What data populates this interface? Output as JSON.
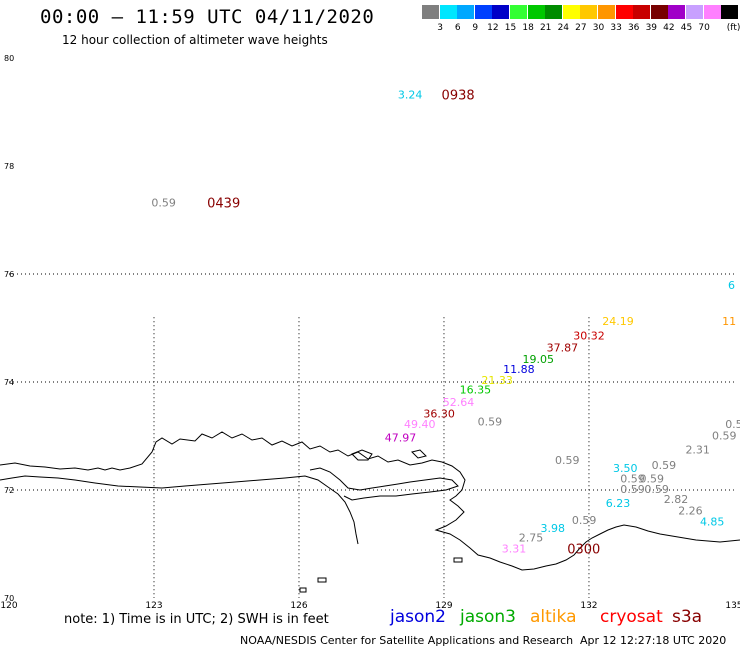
{
  "title": "00:00 – 11:59 UTC 04/11/2020",
  "subtitle": "12 hour collection of altimeter wave heights",
  "legend": {
    "unit": "(ft)",
    "items": [
      {
        "label": "",
        "color": "#7f7f7f"
      },
      {
        "label": "3",
        "color": "#00e6ff"
      },
      {
        "label": "6",
        "color": "#00a8ff"
      },
      {
        "label": "9",
        "color": "#0040ff"
      },
      {
        "label": "12",
        "color": "#0000c8"
      },
      {
        "label": "15",
        "color": "#33ff33"
      },
      {
        "label": "18",
        "color": "#00c800"
      },
      {
        "label": "21",
        "color": "#008c00"
      },
      {
        "label": "24",
        "color": "#ffff00"
      },
      {
        "label": "27",
        "color": "#ffc800"
      },
      {
        "label": "30",
        "color": "#ff9600"
      },
      {
        "label": "33",
        "color": "#ff0000"
      },
      {
        "label": "36",
        "color": "#c80000"
      },
      {
        "label": "39",
        "color": "#780000"
      },
      {
        "label": "42",
        "color": "#a000c8"
      },
      {
        "label": "45",
        "color": "#c8a0ff"
      },
      {
        "label": "70",
        "color": "#ff80ff"
      },
      {
        "label": "",
        "color": "#000000"
      }
    ]
  },
  "note": "note:  1) Time is in UTC;  2) SWH is in feet",
  "satellites": [
    {
      "name": "jason2",
      "color": "#0000dd"
    },
    {
      "name": "jason3",
      "color": "#00aa00"
    },
    {
      "name": "altika",
      "color": "#ff9900"
    },
    {
      "name": "cryosat",
      "color": "#ff0000"
    },
    {
      "name": "s3a",
      "color": "#880000"
    }
  ],
  "credit": "NOAA/NESDIS Center for Satellite Applications and Research",
  "timestamp": "Apr 12 12:27:18 UTC 2020",
  "chart_data": {
    "type": "scatter",
    "xlabel": "",
    "ylabel": "",
    "xlim": [
      120,
      135
    ],
    "ylim": [
      70,
      80
    ],
    "x_ticks": [
      "120",
      "123",
      "126",
      "129",
      "132",
      "135"
    ],
    "y_ticks": [
      "80",
      "78",
      "76",
      "74",
      "72",
      "70"
    ],
    "grid": true,
    "points": [
      {
        "lon": 128.3,
        "lat": 79.32,
        "label": "3.24",
        "color": "#00c8e6"
      },
      {
        "lon": 123.2,
        "lat": 77.32,
        "label": "0.59",
        "color": "#808080"
      },
      {
        "lon": 134.95,
        "lat": 75.8,
        "label": "6",
        "color": "#00c8e6"
      },
      {
        "lon": 132.6,
        "lat": 75.13,
        "label": "24.19",
        "color": "#ffc800"
      },
      {
        "lon": 134.9,
        "lat": 75.13,
        "label": "11",
        "color": "#ff9600"
      },
      {
        "lon": 132.0,
        "lat": 74.86,
        "label": "30.32",
        "color": "#c80000"
      },
      {
        "lon": 131.45,
        "lat": 74.64,
        "label": "37.87",
        "color": "#a00000"
      },
      {
        "lon": 130.95,
        "lat": 74.43,
        "label": "19.05",
        "color": "#00a000"
      },
      {
        "lon": 130.55,
        "lat": 74.24,
        "label": "11.88",
        "color": "#0000dd"
      },
      {
        "lon": 130.1,
        "lat": 74.04,
        "label": "21.33",
        "color": "#e6e600"
      },
      {
        "lon": 129.65,
        "lat": 73.86,
        "label": "16.35",
        "color": "#00c800"
      },
      {
        "lon": 129.3,
        "lat": 73.63,
        "label": "52.64",
        "color": "#ff80ff"
      },
      {
        "lon": 128.9,
        "lat": 73.42,
        "label": "36.30",
        "color": "#a00000"
      },
      {
        "lon": 128.5,
        "lat": 73.22,
        "label": "49.40",
        "color": "#ff80ff"
      },
      {
        "lon": 129.95,
        "lat": 73.27,
        "label": "0.59",
        "color": "#808080"
      },
      {
        "lon": 128.1,
        "lat": 72.97,
        "label": "47.97",
        "color": "#c000c0"
      },
      {
        "lon": 131.55,
        "lat": 72.56,
        "label": "0.59",
        "color": "#808080"
      },
      {
        "lon": 132.75,
        "lat": 72.41,
        "label": "3.50",
        "color": "#00c8e6"
      },
      {
        "lon": 133.55,
        "lat": 72.46,
        "label": "0.59",
        "color": "#808080"
      },
      {
        "lon": 134.25,
        "lat": 72.75,
        "label": "2.31",
        "color": "#808080"
      },
      {
        "lon": 134.8,
        "lat": 73.01,
        "label": "0.59",
        "color": "#808080"
      },
      {
        "lon": 135.0,
        "lat": 73.22,
        "label": "0.5",
        "color": "#808080"
      },
      {
        "lon": 132.9,
        "lat": 72.21,
        "label": "0.59",
        "color": "#808080"
      },
      {
        "lon": 133.3,
        "lat": 72.21,
        "label": "0.59",
        "color": "#808080"
      },
      {
        "lon": 132.9,
        "lat": 72.02,
        "label": "0.59",
        "color": "#808080"
      },
      {
        "lon": 133.4,
        "lat": 72.02,
        "label": "0.59",
        "color": "#808080"
      },
      {
        "lon": 133.8,
        "lat": 71.83,
        "label": "2.82",
        "color": "#808080"
      },
      {
        "lon": 134.1,
        "lat": 71.62,
        "label": "2.26",
        "color": "#808080"
      },
      {
        "lon": 134.55,
        "lat": 71.42,
        "label": "4.85",
        "color": "#00c8e6"
      },
      {
        "lon": 132.6,
        "lat": 71.76,
        "label": "6.23",
        "color": "#00c8e6"
      },
      {
        "lon": 131.9,
        "lat": 71.44,
        "label": "0.59",
        "color": "#808080"
      },
      {
        "lon": 131.25,
        "lat": 71.3,
        "label": "3.98",
        "color": "#00c8e6"
      },
      {
        "lon": 130.8,
        "lat": 71.12,
        "label": "2.75",
        "color": "#808080"
      },
      {
        "lon": 130.45,
        "lat": 70.92,
        "label": "3.31",
        "color": "#ff80ff"
      }
    ],
    "time_labels": [
      {
        "lon": 128.95,
        "lat": 79.32,
        "label": "0938",
        "color": "#880000"
      },
      {
        "lon": 124.1,
        "lat": 77.32,
        "label": "0439",
        "color": "#880000"
      },
      {
        "lon": 131.55,
        "lat": 70.92,
        "label": "0300",
        "color": "#880000"
      }
    ]
  }
}
